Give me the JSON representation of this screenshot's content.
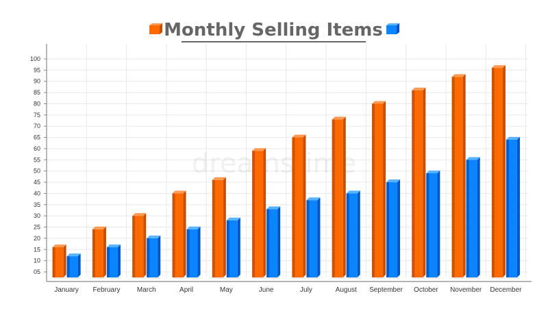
{
  "colors": {
    "series_1": "#ff6a00",
    "series_1_side": "#c84e00",
    "series_1_top": "#ff9a55",
    "series_2": "#0a84ff",
    "series_2_side": "#0056c4",
    "series_2_top": "#59b4ff",
    "grid": "#e8e8e8",
    "axis": "#888888",
    "title": "#666666"
  },
  "watermark": "dreamstime",
  "chart_data": {
    "type": "bar",
    "title": "Monthly Selling Items",
    "xlabel": "",
    "ylabel": "",
    "ylim": [
      0,
      100
    ],
    "y_ticks": [
      "05",
      "10",
      "15",
      "20",
      "25",
      "30",
      "35",
      "40",
      "45",
      "50",
      "55",
      "60",
      "65",
      "70",
      "75",
      "80",
      "85",
      "90",
      "95",
      "100"
    ],
    "grid": true,
    "legend": "top, flanking the title (color swatches only)",
    "categories": [
      "January",
      "February",
      "March",
      "April",
      "May",
      "June",
      "July",
      "August",
      "September",
      "October",
      "November",
      "December"
    ],
    "series": [
      {
        "values": [
          16,
          24,
          30,
          40,
          46,
          59,
          65,
          73,
          80,
          86,
          92,
          96
        ]
      },
      {
        "values": [
          12,
          16,
          20,
          24,
          28,
          33,
          37,
          40,
          45,
          49,
          55,
          64
        ]
      }
    ]
  }
}
